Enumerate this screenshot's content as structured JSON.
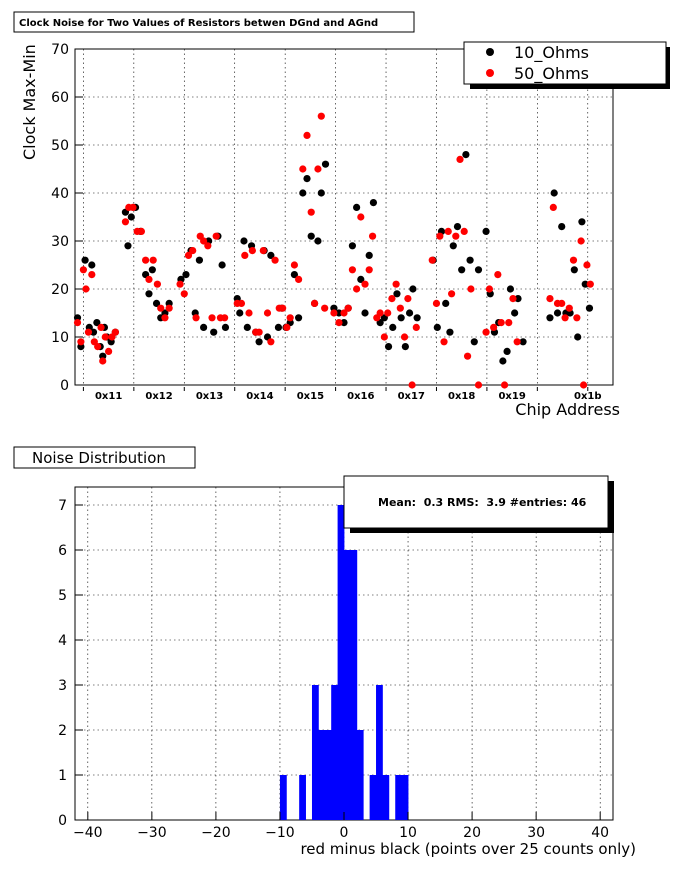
{
  "colors": {
    "black_series": "#000000",
    "red_series": "#ff0000",
    "histogram": "#0000ff",
    "background": "#ffffff"
  },
  "chart_data": [
    {
      "type": "scatter",
      "title": "Clock Noise for Two Values of Resistors betwen DGnd and AGnd",
      "xlabel": "Chip Address",
      "ylabel": "Clock Max-Min",
      "ylim": [
        0,
        70
      ],
      "yticks": [
        0,
        10,
        20,
        30,
        40,
        50,
        60,
        70
      ],
      "x_categories": [
        "0x11",
        "0x12",
        "0x13",
        "0x14",
        "0x15",
        "0x16",
        "0x17",
        "0x18",
        "0x19",
        "0x1b"
      ],
      "legend_position": "top-right",
      "grid": true,
      "series": [
        {
          "name": "10_Ohms",
          "color": "#000000",
          "points": [
            [
              0.3,
              14
            ],
            [
              0.7,
              8
            ],
            [
              1.2,
              26
            ],
            [
              1.7,
              12
            ],
            [
              2.0,
              25
            ],
            [
              2.2,
              11
            ],
            [
              2.6,
              13
            ],
            [
              3.0,
              8
            ],
            [
              3.3,
              6
            ],
            [
              3.5,
              12
            ],
            [
              3.8,
              10
            ],
            [
              4.3,
              9
            ],
            [
              4.8,
              11
            ],
            [
              6.0,
              36
            ],
            [
              6.3,
              29
            ],
            [
              6.7,
              35
            ],
            [
              7.2,
              37
            ],
            [
              7.8,
              32
            ],
            [
              8.4,
              23
            ],
            [
              8.8,
              19
            ],
            [
              9.2,
              24
            ],
            [
              9.7,
              17
            ],
            [
              10.2,
              14
            ],
            [
              10.7,
              15
            ],
            [
              11.2,
              17
            ],
            [
              12.6,
              22
            ],
            [
              13.2,
              23
            ],
            [
              13.8,
              28
            ],
            [
              14.3,
              15
            ],
            [
              14.8,
              26
            ],
            [
              15.3,
              12
            ],
            [
              15.9,
              30
            ],
            [
              16.5,
              11
            ],
            [
              17.0,
              31
            ],
            [
              17.5,
              25
            ],
            [
              17.9,
              12
            ],
            [
              19.3,
              18
            ],
            [
              19.6,
              15
            ],
            [
              20.1,
              30
            ],
            [
              20.5,
              12
            ],
            [
              21.0,
              29
            ],
            [
              21.5,
              11
            ],
            [
              21.9,
              9
            ],
            [
              22.5,
              28
            ],
            [
              22.9,
              10
            ],
            [
              23.3,
              27
            ],
            [
              24.2,
              12
            ],
            [
              24.6,
              16
            ],
            [
              25.1,
              12
            ],
            [
              25.6,
              13
            ],
            [
              26.1,
              23
            ],
            [
              26.6,
              14
            ],
            [
              27.1,
              40
            ],
            [
              27.6,
              43
            ],
            [
              28.1,
              31
            ],
            [
              28.5,
              17
            ],
            [
              28.9,
              30
            ],
            [
              29.3,
              40
            ],
            [
              29.8,
              46
            ],
            [
              30.8,
              16
            ],
            [
              31.4,
              15
            ],
            [
              32.0,
              13
            ],
            [
              32.5,
              16
            ],
            [
              33.0,
              29
            ],
            [
              33.5,
              37
            ],
            [
              34.0,
              22
            ],
            [
              34.5,
              15
            ],
            [
              35.0,
              27
            ],
            [
              35.5,
              38
            ],
            [
              36.3,
              13
            ],
            [
              36.8,
              14
            ],
            [
              37.3,
              8
            ],
            [
              37.8,
              12
            ],
            [
              38.3,
              19
            ],
            [
              38.8,
              14
            ],
            [
              39.3,
              8
            ],
            [
              39.8,
              15
            ],
            [
              40.2,
              20
            ],
            [
              40.7,
              14
            ],
            [
              42.6,
              26
            ],
            [
              43.1,
              12
            ],
            [
              43.6,
              32
            ],
            [
              44.1,
              17
            ],
            [
              44.6,
              11
            ],
            [
              45.0,
              29
            ],
            [
              45.5,
              33
            ],
            [
              46.0,
              24
            ],
            [
              46.5,
              48
            ],
            [
              47.0,
              26
            ],
            [
              47.5,
              9
            ],
            [
              48.0,
              24
            ],
            [
              48.9,
              32
            ],
            [
              49.4,
              19
            ],
            [
              49.9,
              11
            ],
            [
              50.4,
              13
            ],
            [
              50.9,
              5
            ],
            [
              51.4,
              7
            ],
            [
              51.8,
              20
            ],
            [
              52.3,
              15
            ],
            [
              52.7,
              18
            ],
            [
              53.3,
              9
            ],
            [
              56.5,
              14
            ],
            [
              57.0,
              40
            ],
            [
              57.4,
              15
            ],
            [
              57.9,
              33
            ],
            [
              58.4,
              15
            ],
            [
              58.9,
              15
            ],
            [
              59.4,
              24
            ],
            [
              59.8,
              10
            ],
            [
              60.3,
              34
            ],
            [
              60.7,
              21
            ],
            [
              61.2,
              16
            ]
          ]
        },
        {
          "name": "50_Ohms",
          "color": "#ff0000",
          "points": [
            [
              0.3,
              13
            ],
            [
              0.7,
              9
            ],
            [
              1.0,
              24
            ],
            [
              1.3,
              20
            ],
            [
              1.6,
              11
            ],
            [
              2.0,
              23
            ],
            [
              2.3,
              9
            ],
            [
              2.7,
              8
            ],
            [
              3.1,
              12
            ],
            [
              3.3,
              5
            ],
            [
              3.6,
              10
            ],
            [
              4.0,
              7
            ],
            [
              4.4,
              10
            ],
            [
              4.8,
              11
            ],
            [
              6.0,
              34
            ],
            [
              6.4,
              37
            ],
            [
              6.9,
              37
            ],
            [
              7.4,
              32
            ],
            [
              7.9,
              32
            ],
            [
              8.4,
              26
            ],
            [
              8.8,
              22
            ],
            [
              9.3,
              26
            ],
            [
              9.8,
              21
            ],
            [
              10.2,
              16
            ],
            [
              10.7,
              14
            ],
            [
              11.2,
              16
            ],
            [
              12.5,
              21
            ],
            [
              13.0,
              19
            ],
            [
              13.5,
              27
            ],
            [
              14.0,
              28
            ],
            [
              14.4,
              14
            ],
            [
              14.9,
              31
            ],
            [
              15.3,
              30
            ],
            [
              15.8,
              29
            ],
            [
              16.3,
              14
            ],
            [
              16.8,
              31
            ],
            [
              17.3,
              14
            ],
            [
              17.8,
              14
            ],
            [
              19.3,
              17
            ],
            [
              19.8,
              17
            ],
            [
              20.2,
              27
            ],
            [
              20.7,
              15
            ],
            [
              21.1,
              28
            ],
            [
              21.5,
              11
            ],
            [
              21.9,
              11
            ],
            [
              22.4,
              28
            ],
            [
              22.9,
              15
            ],
            [
              23.3,
              9
            ],
            [
              23.8,
              26
            ],
            [
              24.3,
              16
            ],
            [
              24.7,
              16
            ],
            [
              25.2,
              12
            ],
            [
              25.6,
              14
            ],
            [
              26.1,
              25
            ],
            [
              26.6,
              22
            ],
            [
              27.1,
              45
            ],
            [
              27.6,
              52
            ],
            [
              28.1,
              36
            ],
            [
              28.5,
              17
            ],
            [
              28.9,
              45
            ],
            [
              29.3,
              56
            ],
            [
              29.7,
              16
            ],
            [
              30.8,
              15
            ],
            [
              31.4,
              13
            ],
            [
              32.0,
              15
            ],
            [
              32.5,
              16
            ],
            [
              33.0,
              24
            ],
            [
              33.5,
              20
            ],
            [
              34.0,
              35
            ],
            [
              34.5,
              21
            ],
            [
              35.0,
              24
            ],
            [
              35.4,
              31
            ],
            [
              35.9,
              14
            ],
            [
              36.3,
              15
            ],
            [
              36.8,
              10
            ],
            [
              37.2,
              15
            ],
            [
              37.7,
              18
            ],
            [
              38.2,
              21
            ],
            [
              38.7,
              16
            ],
            [
              39.2,
              10
            ],
            [
              39.6,
              18
            ],
            [
              40.1,
              0
            ],
            [
              40.6,
              12
            ],
            [
              42.5,
              26
            ],
            [
              43.0,
              17
            ],
            [
              43.4,
              31
            ],
            [
              43.9,
              9
            ],
            [
              44.4,
              32
            ],
            [
              44.8,
              19
            ],
            [
              45.3,
              31
            ],
            [
              45.8,
              47
            ],
            [
              46.3,
              32
            ],
            [
              46.7,
              6
            ],
            [
              47.1,
              20
            ],
            [
              48.0,
              0
            ],
            [
              48.9,
              11
            ],
            [
              49.3,
              20
            ],
            [
              49.8,
              12
            ],
            [
              50.3,
              23
            ],
            [
              50.7,
              13
            ],
            [
              51.1,
              0
            ],
            [
              51.6,
              13
            ],
            [
              52.1,
              18
            ],
            [
              52.6,
              9
            ],
            [
              56.5,
              18
            ],
            [
              56.9,
              37
            ],
            [
              57.4,
              17
            ],
            [
              57.9,
              17
            ],
            [
              58.3,
              14
            ],
            [
              58.8,
              16
            ],
            [
              59.3,
              26
            ],
            [
              59.7,
              14
            ],
            [
              60.2,
              30
            ],
            [
              60.5,
              0
            ],
            [
              60.9,
              25
            ],
            [
              61.3,
              21
            ]
          ]
        }
      ]
    },
    {
      "type": "bar",
      "title": "Noise Distribution",
      "xlabel": "red minus black (points over 25 counts only)",
      "ylabel": "",
      "xlim": [
        -42,
        42
      ],
      "ylim": [
        0,
        7.4
      ],
      "xticks": [
        -40,
        -30,
        -20,
        -10,
        0,
        10,
        20,
        30,
        40
      ],
      "yticks": [
        0,
        1,
        2,
        3,
        4,
        5,
        6,
        7
      ],
      "bin_width": 1,
      "bins_from": -10,
      "values": [
        1,
        0,
        0,
        1,
        0,
        3,
        2,
        2,
        3,
        7,
        6,
        6,
        2,
        0,
        1,
        3,
        1,
        0,
        1,
        1,
        0
      ],
      "stats": {
        "label": "Mean:  0.3 RMS:  3.9 #entries: 46",
        "mean": 0.3,
        "rms": 3.9,
        "entries": 46
      },
      "stats_position": "top-right"
    }
  ]
}
